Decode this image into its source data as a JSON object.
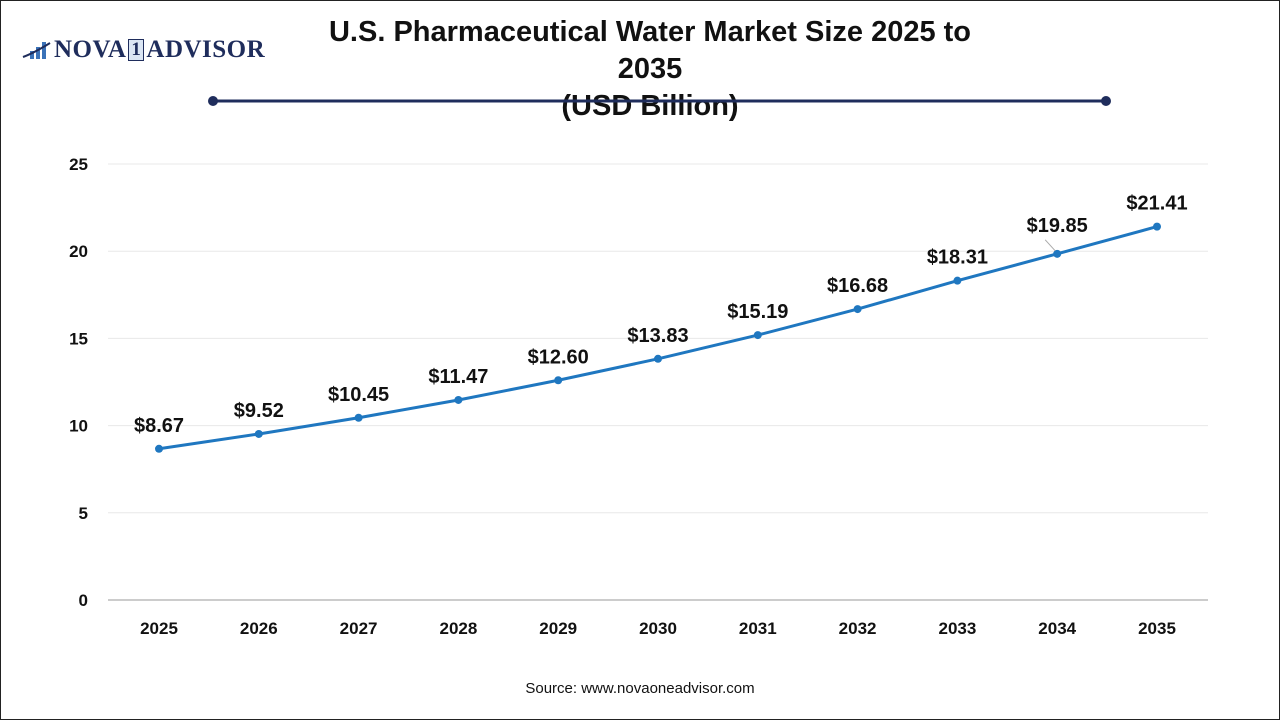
{
  "logo": {
    "text_left": "NOVA",
    "text_mid": "1",
    "text_right": "ADVISOR"
  },
  "title_line1": "U.S. Pharmaceutical Water Market Size 2025 to 2035",
  "title_line2": "(USD Billion)",
  "source": "Source: www.novaoneadvisor.com",
  "colors": {
    "line": "#1f77c0",
    "title_rule": "#1f2d5c",
    "grid": "#e8e8e8"
  },
  "chart_data": {
    "type": "line",
    "title": "U.S. Pharmaceutical Water Market Size 2025 to 2035 (USD Billion)",
    "categories": [
      "2025",
      "2026",
      "2027",
      "2028",
      "2029",
      "2030",
      "2031",
      "2032",
      "2033",
      "2034",
      "2035"
    ],
    "values": [
      8.67,
      9.52,
      10.45,
      11.47,
      12.6,
      13.83,
      15.19,
      16.68,
      18.31,
      19.85,
      21.41
    ],
    "data_labels": [
      "$8.67",
      "$9.52",
      "$10.45",
      "$11.47",
      "$12.60",
      "$13.83",
      "$15.19",
      "$16.68",
      "$18.31",
      "$19.85",
      "$21.41"
    ],
    "yticks": [
      "0",
      "5",
      "10",
      "15",
      "20",
      "25"
    ],
    "ylim": [
      0,
      25
    ],
    "grid": true,
    "legend": "none"
  }
}
